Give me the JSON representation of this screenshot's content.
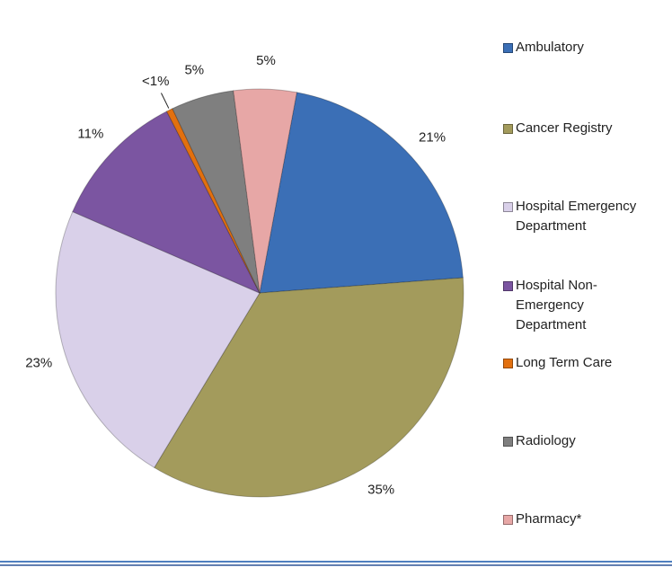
{
  "chart_data": {
    "type": "pie",
    "categories": [
      "Ambulatory",
      "Cancer Registry",
      "Hospital Emergency Department",
      "Hospital Non-Emergency Department",
      "Long Term Care",
      "Radiology",
      "Pharmacy*"
    ],
    "values": [
      21,
      35,
      23,
      11,
      0.5,
      5,
      5
    ],
    "value_labels": [
      "21%",
      "35%",
      "23%",
      "11%",
      "<1%",
      "5%",
      "5%"
    ],
    "colors": [
      "#3b6fb6",
      "#a39b5c",
      "#d9d0e9",
      "#7b55a1",
      "#e2700f",
      "#7f7f7f",
      "#e7a7a6"
    ],
    "legend": "right"
  }
}
